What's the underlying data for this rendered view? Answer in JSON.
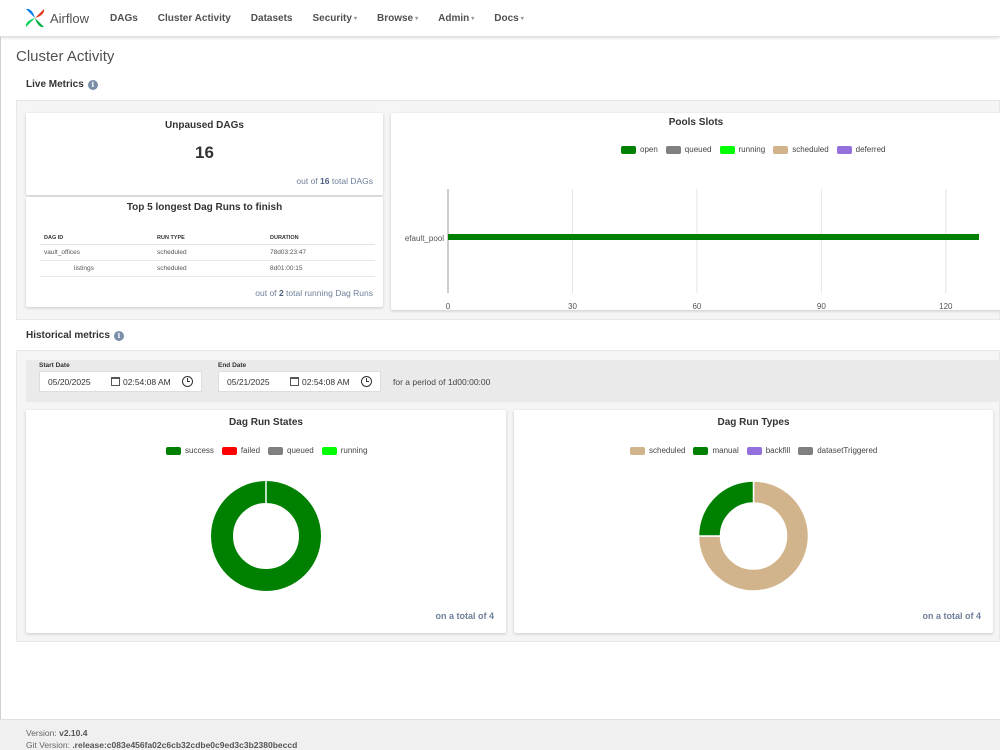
{
  "navbar": {
    "brand": "Airflow",
    "items": [
      {
        "label": "DAGs",
        "dropdown": false
      },
      {
        "label": "Cluster Activity",
        "dropdown": false
      },
      {
        "label": "Datasets",
        "dropdown": false
      },
      {
        "label": "Security",
        "dropdown": true
      },
      {
        "label": "Browse",
        "dropdown": true
      },
      {
        "label": "Admin",
        "dropdown": true
      },
      {
        "label": "Docs",
        "dropdown": true
      }
    ]
  },
  "page": {
    "title": "Cluster Activity"
  },
  "live_metrics": {
    "title": "Live Metrics",
    "unpaused": {
      "title": "Unpaused DAGs",
      "value": "16",
      "footer_prefix": "out of",
      "footer_value": "16",
      "footer_suffix": "total DAGs"
    },
    "top_runs": {
      "title": "Top 5 longest Dag Runs to finish",
      "columns": [
        "DAG ID",
        "RUN TYPE",
        "DURATION"
      ],
      "rows": [
        {
          "dag_id": "vault_offices",
          "run_type": "scheduled",
          "duration": "78d03:23:47"
        },
        {
          "dag_id": "listings",
          "run_type": "scheduled",
          "duration": "8d01:00:15"
        }
      ],
      "footer_prefix": "out of",
      "footer_value": "2",
      "footer_suffix": "total running Dag Runs"
    },
    "pools": {
      "title": "Pools Slots",
      "legend": [
        {
          "label": "open",
          "color": "#008000"
        },
        {
          "label": "queued",
          "color": "#808080"
        },
        {
          "label": "running",
          "color": "#00ff00"
        },
        {
          "label": "scheduled",
          "color": "#d2b48c"
        },
        {
          "label": "deferred",
          "color": "#9370db"
        }
      ]
    }
  },
  "historical": {
    "title": "Historical metrics",
    "start_label": "Start Date",
    "start_date": "05/20/2025",
    "start_time": "02:54:08 AM",
    "end_label": "End Date",
    "end_date": "05/21/2025",
    "end_time": "02:54:08 AM",
    "period_prefix": "for a period of",
    "period_value": "1d00:00:00",
    "dag_run_states": {
      "title": "Dag Run States",
      "legend": [
        {
          "label": "success",
          "color": "#008000"
        },
        {
          "label": "failed",
          "color": "#ff0000"
        },
        {
          "label": "queued",
          "color": "#808080"
        },
        {
          "label": "running",
          "color": "#00ff00"
        }
      ],
      "footer_prefix": "on a total of",
      "footer_value": "4"
    },
    "dag_run_types": {
      "title": "Dag Run Types",
      "legend": [
        {
          "label": "scheduled",
          "color": "#d2b48c"
        },
        {
          "label": "manual",
          "color": "#008000"
        },
        {
          "label": "backfill",
          "color": "#9370db"
        },
        {
          "label": "datasetTriggered",
          "color": "#808080"
        }
      ],
      "footer_prefix": "on a total of",
      "footer_value": "4"
    }
  },
  "footer": {
    "version_label": "Version:",
    "version": "v2.10.4",
    "git_label": "Git Version:",
    "git_version": ".release:c083e456fa02c6cb32cdbe0c9ed3c3b2380beccd"
  },
  "chart_data": [
    {
      "type": "bar",
      "title": "Pools Slots",
      "orientation": "horizontal",
      "categories": [
        "default_pool"
      ],
      "tick_label_shown": "efault_pool",
      "series": [
        {
          "name": "open",
          "values": [
            128
          ]
        },
        {
          "name": "queued",
          "values": [
            0
          ]
        },
        {
          "name": "running",
          "values": [
            0
          ]
        },
        {
          "name": "scheduled",
          "values": [
            0
          ]
        },
        {
          "name": "deferred",
          "values": [
            0
          ]
        }
      ],
      "xlim": [
        0,
        128
      ],
      "xticks": [
        0,
        30,
        60,
        90,
        120
      ],
      "grid": true,
      "legend": "top"
    },
    {
      "type": "pie",
      "title": "Dag Run States",
      "donut": true,
      "labels": [
        "success",
        "failed",
        "queued",
        "running"
      ],
      "values": [
        4,
        0,
        0,
        0
      ],
      "legend": "top"
    },
    {
      "type": "pie",
      "title": "Dag Run Types",
      "donut": true,
      "labels": [
        "scheduled",
        "manual",
        "backfill",
        "datasetTriggered"
      ],
      "values": [
        3,
        1,
        0,
        0
      ],
      "legend": "top"
    }
  ]
}
